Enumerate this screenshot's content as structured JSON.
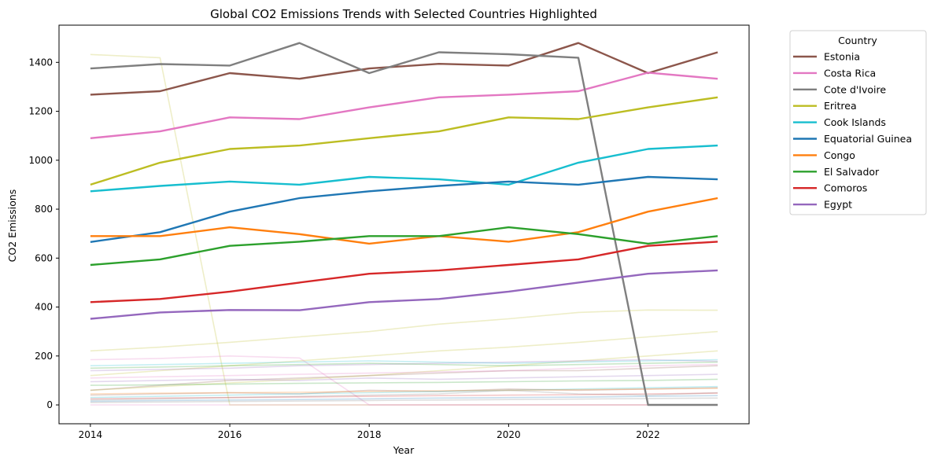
{
  "chart_data": {
    "type": "line",
    "title": "Global CO2 Emissions Trends with Selected Countries Highlighted",
    "xlabel": "Year",
    "ylabel": "CO2 Emissions",
    "xlim": [
      2013.55,
      2023.45
    ],
    "ylim": [
      -77,
      1552
    ],
    "x_ticks": [
      2014,
      2016,
      2018,
      2020,
      2022
    ],
    "y_ticks": [
      0,
      200,
      400,
      600,
      800,
      1000,
      1200,
      1400
    ],
    "grid": false,
    "legend_title": "Country",
    "legend_position": "outside-top-right",
    "x": [
      2014,
      2015,
      2016,
      2017,
      2018,
      2019,
      2020,
      2021,
      2022,
      2023
    ],
    "series": [
      {
        "name": "Estonia",
        "color": "#8c564b",
        "highlight": true,
        "values": [
          1268,
          1282,
          1356,
          1333,
          1375,
          1394,
          1387,
          1479,
          1356,
          1441
        ]
      },
      {
        "name": "Costa Rica",
        "color": "#e377c2",
        "highlight": true,
        "values": [
          1090,
          1118,
          1175,
          1168,
          1216,
          1257,
          1268,
          1282,
          1358,
          1333
        ]
      },
      {
        "name": "Cote d'Ivoire",
        "color": "#7f7f7f",
        "highlight": true,
        "values": [
          1375,
          1393,
          1387,
          1479,
          1356,
          1441,
          1433,
          1419,
          0,
          0
        ]
      },
      {
        "name": "Eritrea",
        "color": "#bcbd22",
        "highlight": true,
        "values": [
          900,
          990,
          1046,
          1060,
          1090,
          1118,
          1175,
          1168,
          1216,
          1257
        ]
      },
      {
        "name": "Cook Islands",
        "color": "#17becf",
        "highlight": true,
        "values": [
          873,
          895,
          913,
          900,
          932,
          922,
          900,
          990,
          1046,
          1060
        ]
      },
      {
        "name": "Equatorial Guinea",
        "color": "#1f77b4",
        "highlight": true,
        "values": [
          666,
          706,
          790,
          845,
          873,
          895,
          913,
          900,
          932,
          922
        ]
      },
      {
        "name": "Congo",
        "color": "#ff7f0e",
        "highlight": true,
        "values": [
          690,
          690,
          726,
          698,
          659,
          690,
          667,
          706,
          790,
          845
        ]
      },
      {
        "name": "El Salvador",
        "color": "#2ca02c",
        "highlight": true,
        "values": [
          572,
          595,
          650,
          667,
          690,
          690,
          726,
          698,
          659,
          690
        ]
      },
      {
        "name": "Comoros",
        "color": "#d62728",
        "highlight": true,
        "values": [
          420,
          433,
          463,
          500,
          536,
          550,
          572,
          595,
          650,
          667
        ]
      },
      {
        "name": "Egypt",
        "color": "#9467bd",
        "highlight": true,
        "values": [
          352,
          378,
          388,
          387,
          420,
          433,
          463,
          500,
          536,
          550
        ]
      },
      {
        "color": "#bcbd22",
        "highlight": false,
        "values": [
          1432,
          1419,
          0,
          0,
          0,
          0,
          0,
          0,
          0,
          0
        ]
      },
      {
        "color": "#bcbd22",
        "highlight": false,
        "values": [
          221,
          236,
          256,
          278,
          300,
          330,
          352,
          378,
          388,
          387
        ]
      },
      {
        "color": "#bcbd22",
        "highlight": false,
        "values": [
          120,
          140,
          160,
          180,
          200,
          221,
          236,
          256,
          278,
          300
        ]
      },
      {
        "color": "#bcbd22",
        "highlight": false,
        "values": [
          60,
          75,
          90,
          105,
          120,
          140,
          160,
          180,
          200,
          221
        ]
      },
      {
        "color": "#8c564b",
        "highlight": false,
        "values": [
          60,
          80,
          100,
          110,
          120,
          130,
          140,
          140,
          150,
          160
        ]
      },
      {
        "color": "#8c564b",
        "highlight": false,
        "values": [
          40,
          45,
          50,
          45,
          60,
          55,
          65,
          60,
          65,
          70
        ]
      },
      {
        "color": "#e377c2",
        "highlight": false,
        "values": [
          185,
          190,
          200,
          192,
          0,
          0,
          0,
          0,
          0,
          0
        ]
      },
      {
        "color": "#e377c2",
        "highlight": false,
        "values": [
          110,
          115,
          120,
          125,
          130,
          135,
          140,
          150,
          160,
          165
        ]
      },
      {
        "color": "#e377c2",
        "highlight": false,
        "values": [
          0,
          0,
          0,
          0,
          0,
          0,
          0,
          0,
          0,
          0
        ]
      },
      {
        "color": "#9467bd",
        "highlight": false,
        "values": [
          140,
          145,
          150,
          160,
          165,
          170,
          175,
          180,
          185,
          178
        ]
      },
      {
        "color": "#9467bd",
        "highlight": false,
        "values": [
          95,
          100,
          105,
          100,
          110,
          105,
          110,
          115,
          120,
          125
        ]
      },
      {
        "color": "#17becf",
        "highlight": false,
        "values": [
          160,
          165,
          170,
          175,
          180,
          175,
          170,
          175,
          180,
          185
        ]
      },
      {
        "color": "#17becf",
        "highlight": false,
        "values": [
          30,
          35,
          40,
          45,
          50,
          55,
          60,
          65,
          70,
          75
        ]
      },
      {
        "color": "#2ca02c",
        "highlight": false,
        "values": [
          150,
          155,
          160,
          165,
          170,
          165,
          160,
          165,
          170,
          175
        ]
      },
      {
        "color": "#2ca02c",
        "highlight": false,
        "values": [
          80,
          82,
          85,
          88,
          90,
          92,
          95,
          98,
          100,
          105
        ]
      },
      {
        "color": "#7f7f7f",
        "highlight": false,
        "values": [
          20,
          25,
          30,
          35,
          40,
          45,
          60,
          45,
          40,
          50
        ]
      },
      {
        "color": "#7f7f7f",
        "highlight": false,
        "values": [
          10,
          12,
          14,
          16,
          18,
          20,
          22,
          24,
          26,
          28
        ]
      },
      {
        "color": "#ff7f0e",
        "highlight": false,
        "values": [
          45,
          48,
          50,
          52,
          55,
          58,
          60,
          62,
          65,
          68
        ]
      },
      {
        "color": "#d62728",
        "highlight": false,
        "values": [
          25,
          28,
          30,
          32,
          35,
          38,
          40,
          42,
          45,
          48
        ]
      },
      {
        "color": "#1f77b4",
        "highlight": false,
        "values": [
          15,
          18,
          20,
          22,
          25,
          28,
          30,
          32,
          35,
          38
        ]
      }
    ]
  }
}
